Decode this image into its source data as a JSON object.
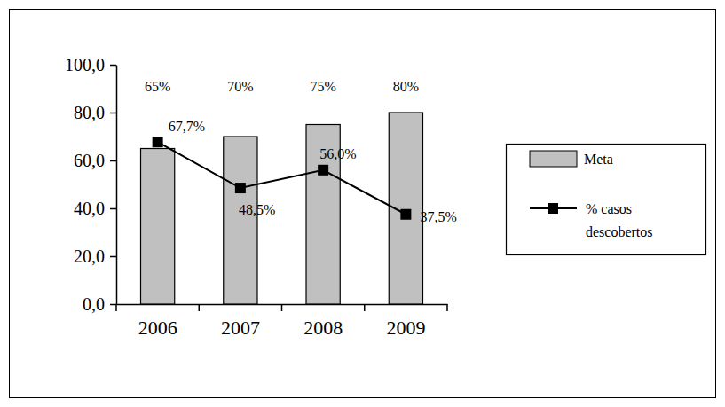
{
  "chart_data": {
    "type": "bar",
    "categories": [
      "2006",
      "2007",
      "2008",
      "2009"
    ],
    "series": [
      {
        "name": "Meta",
        "type": "bar",
        "color": "#c0c0c0",
        "values": [
          65,
          70,
          75,
          80
        ],
        "value_labels": [
          "65%",
          "70%",
          "75%",
          "80%"
        ]
      },
      {
        "name": "% casos descobertos",
        "type": "line",
        "color": "#000000",
        "marker": "square",
        "line_style": "solid",
        "values": [
          67.7,
          48.5,
          56.0,
          37.5
        ],
        "value_labels": [
          "67,7%",
          "48,5%",
          "56,0%",
          "37,5%"
        ]
      }
    ],
    "ylim": [
      0,
      100
    ],
    "yticks": [
      {
        "value": 0,
        "label": "0,0"
      },
      {
        "value": 20,
        "label": "20,0"
      },
      {
        "value": 40,
        "label": "40,0"
      },
      {
        "value": 60,
        "label": "60,0"
      },
      {
        "value": 80,
        "label": "80,0"
      },
      {
        "value": 100,
        "label": "100,0"
      }
    ],
    "grid": false,
    "legend": "right",
    "data_labels": true
  }
}
